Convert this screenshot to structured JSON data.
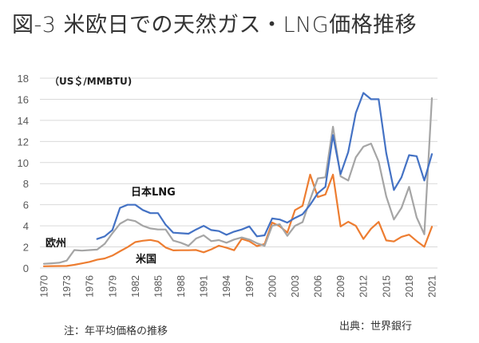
{
  "title": "図-3 米欧日での天然ガス・LNG価格推移",
  "note": "注：年平均価格の推移",
  "source": "出典：世界銀行",
  "chart_data": {
    "type": "line",
    "title": "図-3 米欧日での天然ガス・LNG価格推移",
    "ylabel": "（US＄/MMBTU)",
    "xlabel": "",
    "ylim": [
      0,
      18
    ],
    "yticks": [
      0,
      2,
      4,
      6,
      8,
      10,
      12,
      14,
      16,
      18
    ],
    "xlim": [
      1970,
      2021
    ],
    "xticks": [
      1970,
      1973,
      1976,
      1979,
      1982,
      1985,
      1988,
      1991,
      1994,
      1997,
      2000,
      2003,
      2006,
      2009,
      2012,
      2015,
      2018,
      2021
    ],
    "grid": true,
    "legend": "inline labels",
    "x": [
      1970,
      1971,
      1972,
      1973,
      1974,
      1975,
      1976,
      1977,
      1978,
      1979,
      1980,
      1981,
      1982,
      1983,
      1984,
      1985,
      1986,
      1987,
      1988,
      1989,
      1990,
      1991,
      1992,
      1993,
      1994,
      1995,
      1996,
      1997,
      1998,
      1999,
      2000,
      2001,
      2002,
      2003,
      2004,
      2005,
      2006,
      2007,
      2008,
      2009,
      2010,
      2011,
      2012,
      2013,
      2014,
      2015,
      2016,
      2017,
      2018,
      2019,
      2020,
      2021
    ],
    "series": [
      {
        "name": "日本LNG",
        "color": "#4472C4",
        "values": [
          null,
          null,
          null,
          null,
          null,
          null,
          null,
          2.75,
          3.0,
          3.6,
          5.7,
          6.0,
          6.0,
          5.5,
          5.2,
          5.2,
          4.1,
          3.35,
          3.3,
          3.25,
          3.65,
          4.0,
          3.6,
          3.5,
          3.15,
          3.45,
          3.65,
          3.95,
          3.0,
          3.1,
          4.7,
          4.6,
          4.3,
          4.75,
          5.1,
          6.0,
          7.1,
          7.7,
          12.6,
          8.9,
          11.0,
          14.7,
          16.6,
          16.0,
          16.0,
          10.9,
          7.4,
          8.6,
          10.7,
          10.6,
          8.3,
          10.8
        ]
      },
      {
        "name": "欧州",
        "color": "#A5A5A5",
        "values": [
          0.4,
          0.45,
          0.5,
          0.7,
          1.7,
          1.65,
          1.7,
          1.75,
          2.3,
          3.3,
          4.2,
          4.6,
          4.45,
          4.0,
          3.75,
          3.65,
          3.65,
          2.6,
          2.4,
          2.1,
          2.8,
          3.1,
          2.55,
          2.65,
          2.4,
          2.7,
          2.9,
          2.7,
          2.35,
          2.1,
          4.0,
          4.15,
          3.05,
          4.0,
          4.35,
          6.5,
          8.5,
          8.6,
          13.4,
          8.7,
          8.3,
          10.5,
          11.5,
          11.8,
          10.1,
          6.8,
          4.6,
          5.7,
          7.7,
          4.8,
          3.2,
          16.1
        ]
      },
      {
        "name": "米国",
        "color": "#ED7D31",
        "values": [
          0.17,
          0.18,
          0.19,
          0.2,
          0.3,
          0.44,
          0.58,
          0.79,
          0.91,
          1.18,
          1.59,
          1.98,
          2.46,
          2.59,
          2.66,
          2.51,
          1.94,
          1.67,
          1.69,
          1.69,
          1.71,
          1.49,
          1.77,
          2.12,
          1.92,
          1.69,
          2.76,
          2.53,
          2.08,
          2.27,
          4.31,
          3.96,
          3.36,
          5.49,
          5.9,
          8.86,
          6.73,
          6.97,
          8.86,
          3.94,
          4.39,
          4.0,
          2.75,
          3.73,
          4.37,
          2.62,
          2.52,
          2.96,
          3.16,
          2.56,
          2.01,
          3.91
        ]
      }
    ],
    "annotations": [
      "（US＄/MMBTU)",
      "日本LNG",
      "欧州",
      "米国"
    ]
  }
}
